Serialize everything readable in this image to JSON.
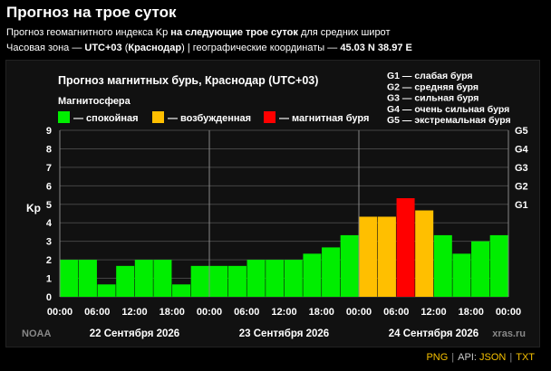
{
  "page": {
    "title": "Прогноз на трое суток",
    "desc_pre": "Прогноз геомагнитного индекса Kp",
    "desc_bold": "на следующие трое суток",
    "desc_post": "для средних широт",
    "tz_pre": "Часовая зона —",
    "tz_value": "UTC+03",
    "tz_city": "Краснодар",
    "tz_coords_pre": "| географические координаты —",
    "tz_coords": "45.03 N 38.97 E"
  },
  "chart_data": {
    "type": "bar",
    "title": "Прогноз магнитных бурь, Краснодар (UTC+03)",
    "legend_title": "Магнитосфера",
    "legend": [
      {
        "label": "— спокойная",
        "color": "#00ee00"
      },
      {
        "label": "— возбужденная",
        "color": "#ffbf00"
      },
      {
        "label": "— магнитная буря",
        "color": "#ff0000"
      }
    ],
    "g_legend": [
      "G1 — слабая буря",
      "G2 — средняя буря",
      "G3 — сильная буря",
      "G4 — очень сильная буря",
      "G5 — экстремальная буря"
    ],
    "ylabel": "Kp",
    "ylim": [
      0,
      9
    ],
    "y_ticks": [
      "0",
      "1",
      "2",
      "3",
      "4",
      "5",
      "6",
      "7",
      "8",
      "9"
    ],
    "right_ticks": [
      {
        "label": "G1",
        "value": 5
      },
      {
        "label": "G2",
        "value": 6
      },
      {
        "label": "G3",
        "value": 7
      },
      {
        "label": "G4",
        "value": 8
      },
      {
        "label": "G5",
        "value": 9
      }
    ],
    "x_tick_labels": [
      "00:00",
      "06:00",
      "12:00",
      "18:00",
      "00:00",
      "06:00",
      "12:00",
      "18:00",
      "00:00",
      "06:00",
      "12:00",
      "18:00",
      "00:00"
    ],
    "days": [
      "22 Сентября 2026",
      "23 Сентября 2026",
      "24 Сентября 2026"
    ],
    "values": [
      2.0,
      2.0,
      0.67,
      1.67,
      2.0,
      2.0,
      0.67,
      1.67,
      1.67,
      1.67,
      2.0,
      2.0,
      2.0,
      2.33,
      2.67,
      3.33,
      4.33,
      4.33,
      5.33,
      4.67,
      3.33,
      2.33,
      3.0,
      3.33
    ],
    "colors": {
      "quiet": "#00ee00",
      "active": "#ffbf00",
      "storm": "#ff0000"
    },
    "source": "NOAA",
    "watermark": "xras.ru"
  },
  "footer": {
    "png": "PNG",
    "api": "API:",
    "json": "JSON",
    "txt": "TXT"
  }
}
